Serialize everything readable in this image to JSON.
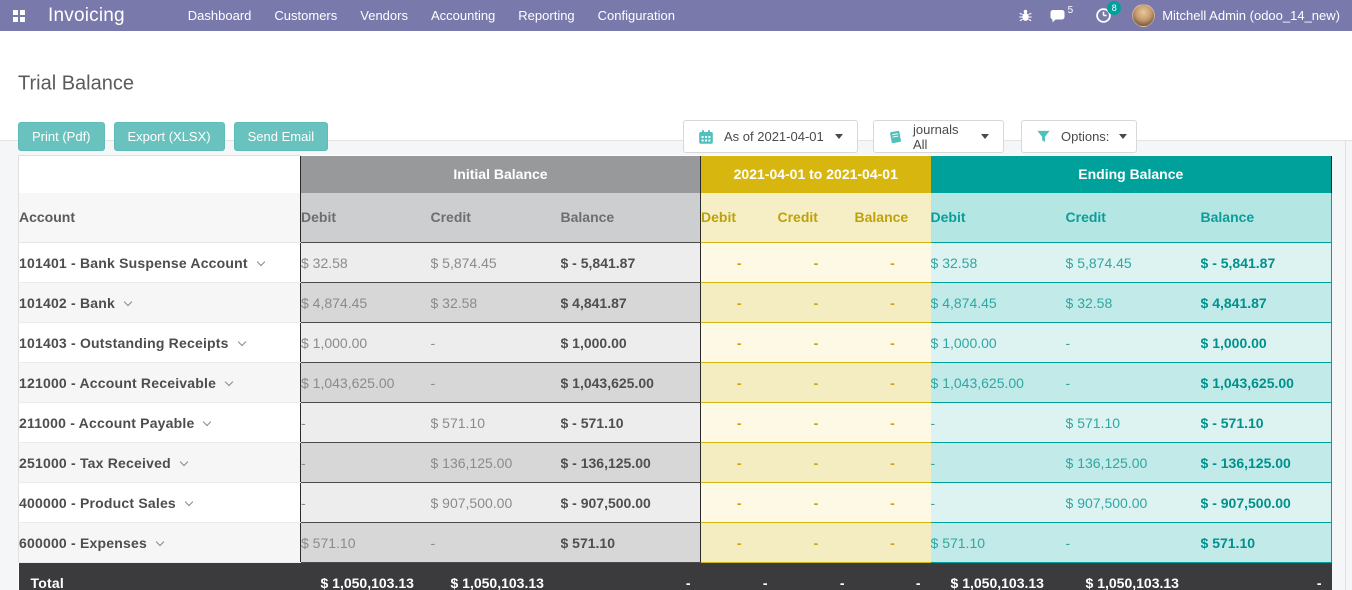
{
  "colors": {
    "navbar_bg": "#7a79ac",
    "accent_teal": "#69c2be",
    "icon_teal": "#4fc0bc",
    "group_initial_bg": "#98999b",
    "group_period_bg": "#d7b70f",
    "group_ending_bg": "#00a09b",
    "total_row_bg": "#3b3b3d"
  },
  "navbar": {
    "app_name": "Invoicing",
    "menu_items": [
      "Dashboard",
      "Customers",
      "Vendors",
      "Accounting",
      "Reporting",
      "Configuration"
    ],
    "message_count": "5",
    "activity_count": "8",
    "user_name": "Mitchell Admin (odoo_14_new)"
  },
  "page": {
    "title": "Trial Balance",
    "actions": {
      "print": "Print (Pdf)",
      "export": "Export (XLSX)",
      "send_email": "Send Email"
    },
    "filters": {
      "date": "As of 2021-04-01",
      "journals": "journals All",
      "options": "Options:"
    }
  },
  "table": {
    "account_header": "Account",
    "groups": [
      {
        "label": "Initial Balance",
        "columns": [
          "Debit",
          "Credit",
          "Balance"
        ]
      },
      {
        "label": "2021-04-01 to 2021-04-01",
        "columns": [
          "Debit",
          "Credit",
          "Balance"
        ]
      },
      {
        "label": "Ending Balance",
        "columns": [
          "Debit",
          "Credit",
          "Balance"
        ]
      }
    ],
    "rows": [
      {
        "account": "101401 - Bank Suspense Account",
        "initial": {
          "debit": "$ 32.58",
          "credit": "$ 5,874.45",
          "balance": "$ - 5,841.87"
        },
        "period": {
          "debit": "-",
          "credit": "-",
          "balance": "-"
        },
        "ending": {
          "debit": "$ 32.58",
          "credit": "$ 5,874.45",
          "balance": "$ - 5,841.87"
        }
      },
      {
        "account": "101402 - Bank",
        "initial": {
          "debit": "$ 4,874.45",
          "credit": "$ 32.58",
          "balance": "$ 4,841.87"
        },
        "period": {
          "debit": "-",
          "credit": "-",
          "balance": "-"
        },
        "ending": {
          "debit": "$ 4,874.45",
          "credit": "$ 32.58",
          "balance": "$ 4,841.87"
        }
      },
      {
        "account": "101403 - Outstanding Receipts",
        "initial": {
          "debit": "$ 1,000.00",
          "credit": "-",
          "balance": "$ 1,000.00"
        },
        "period": {
          "debit": "-",
          "credit": "-",
          "balance": "-"
        },
        "ending": {
          "debit": "$ 1,000.00",
          "credit": "-",
          "balance": "$ 1,000.00"
        }
      },
      {
        "account": "121000 - Account Receivable",
        "initial": {
          "debit": "$ 1,043,625.00",
          "credit": "-",
          "balance": "$ 1,043,625.00"
        },
        "period": {
          "debit": "-",
          "credit": "-",
          "balance": "-"
        },
        "ending": {
          "debit": "$ 1,043,625.00",
          "credit": "-",
          "balance": "$ 1,043,625.00"
        }
      },
      {
        "account": "211000 - Account Payable",
        "initial": {
          "debit": "-",
          "credit": "$ 571.10",
          "balance": "$ - 571.10"
        },
        "period": {
          "debit": "-",
          "credit": "-",
          "balance": "-"
        },
        "ending": {
          "debit": "-",
          "credit": "$ 571.10",
          "balance": "$ - 571.10"
        }
      },
      {
        "account": "251000 - Tax Received",
        "initial": {
          "debit": "-",
          "credit": "$ 136,125.00",
          "balance": "$ - 136,125.00"
        },
        "period": {
          "debit": "-",
          "credit": "-",
          "balance": "-"
        },
        "ending": {
          "debit": "-",
          "credit": "$ 136,125.00",
          "balance": "$ - 136,125.00"
        }
      },
      {
        "account": "400000 - Product Sales",
        "initial": {
          "debit": "-",
          "credit": "$ 907,500.00",
          "balance": "$ - 907,500.00"
        },
        "period": {
          "debit": "-",
          "credit": "-",
          "balance": "-"
        },
        "ending": {
          "debit": "-",
          "credit": "$ 907,500.00",
          "balance": "$ - 907,500.00"
        }
      },
      {
        "account": "600000 - Expenses",
        "initial": {
          "debit": "$ 571.10",
          "credit": "-",
          "balance": "$ 571.10"
        },
        "period": {
          "debit": "-",
          "credit": "-",
          "balance": "-"
        },
        "ending": {
          "debit": "$ 571.10",
          "credit": "-",
          "balance": "$ 571.10"
        }
      }
    ],
    "total": {
      "label": "Total",
      "initial": {
        "debit": "$ 1,050,103.13",
        "credit": "$ 1,050,103.13",
        "balance": "-"
      },
      "period": {
        "debit": "-",
        "credit": "-",
        "balance": "-"
      },
      "ending": {
        "debit": "$ 1,050,103.13",
        "credit": "$ 1,050,103.13",
        "balance": "-"
      }
    }
  }
}
